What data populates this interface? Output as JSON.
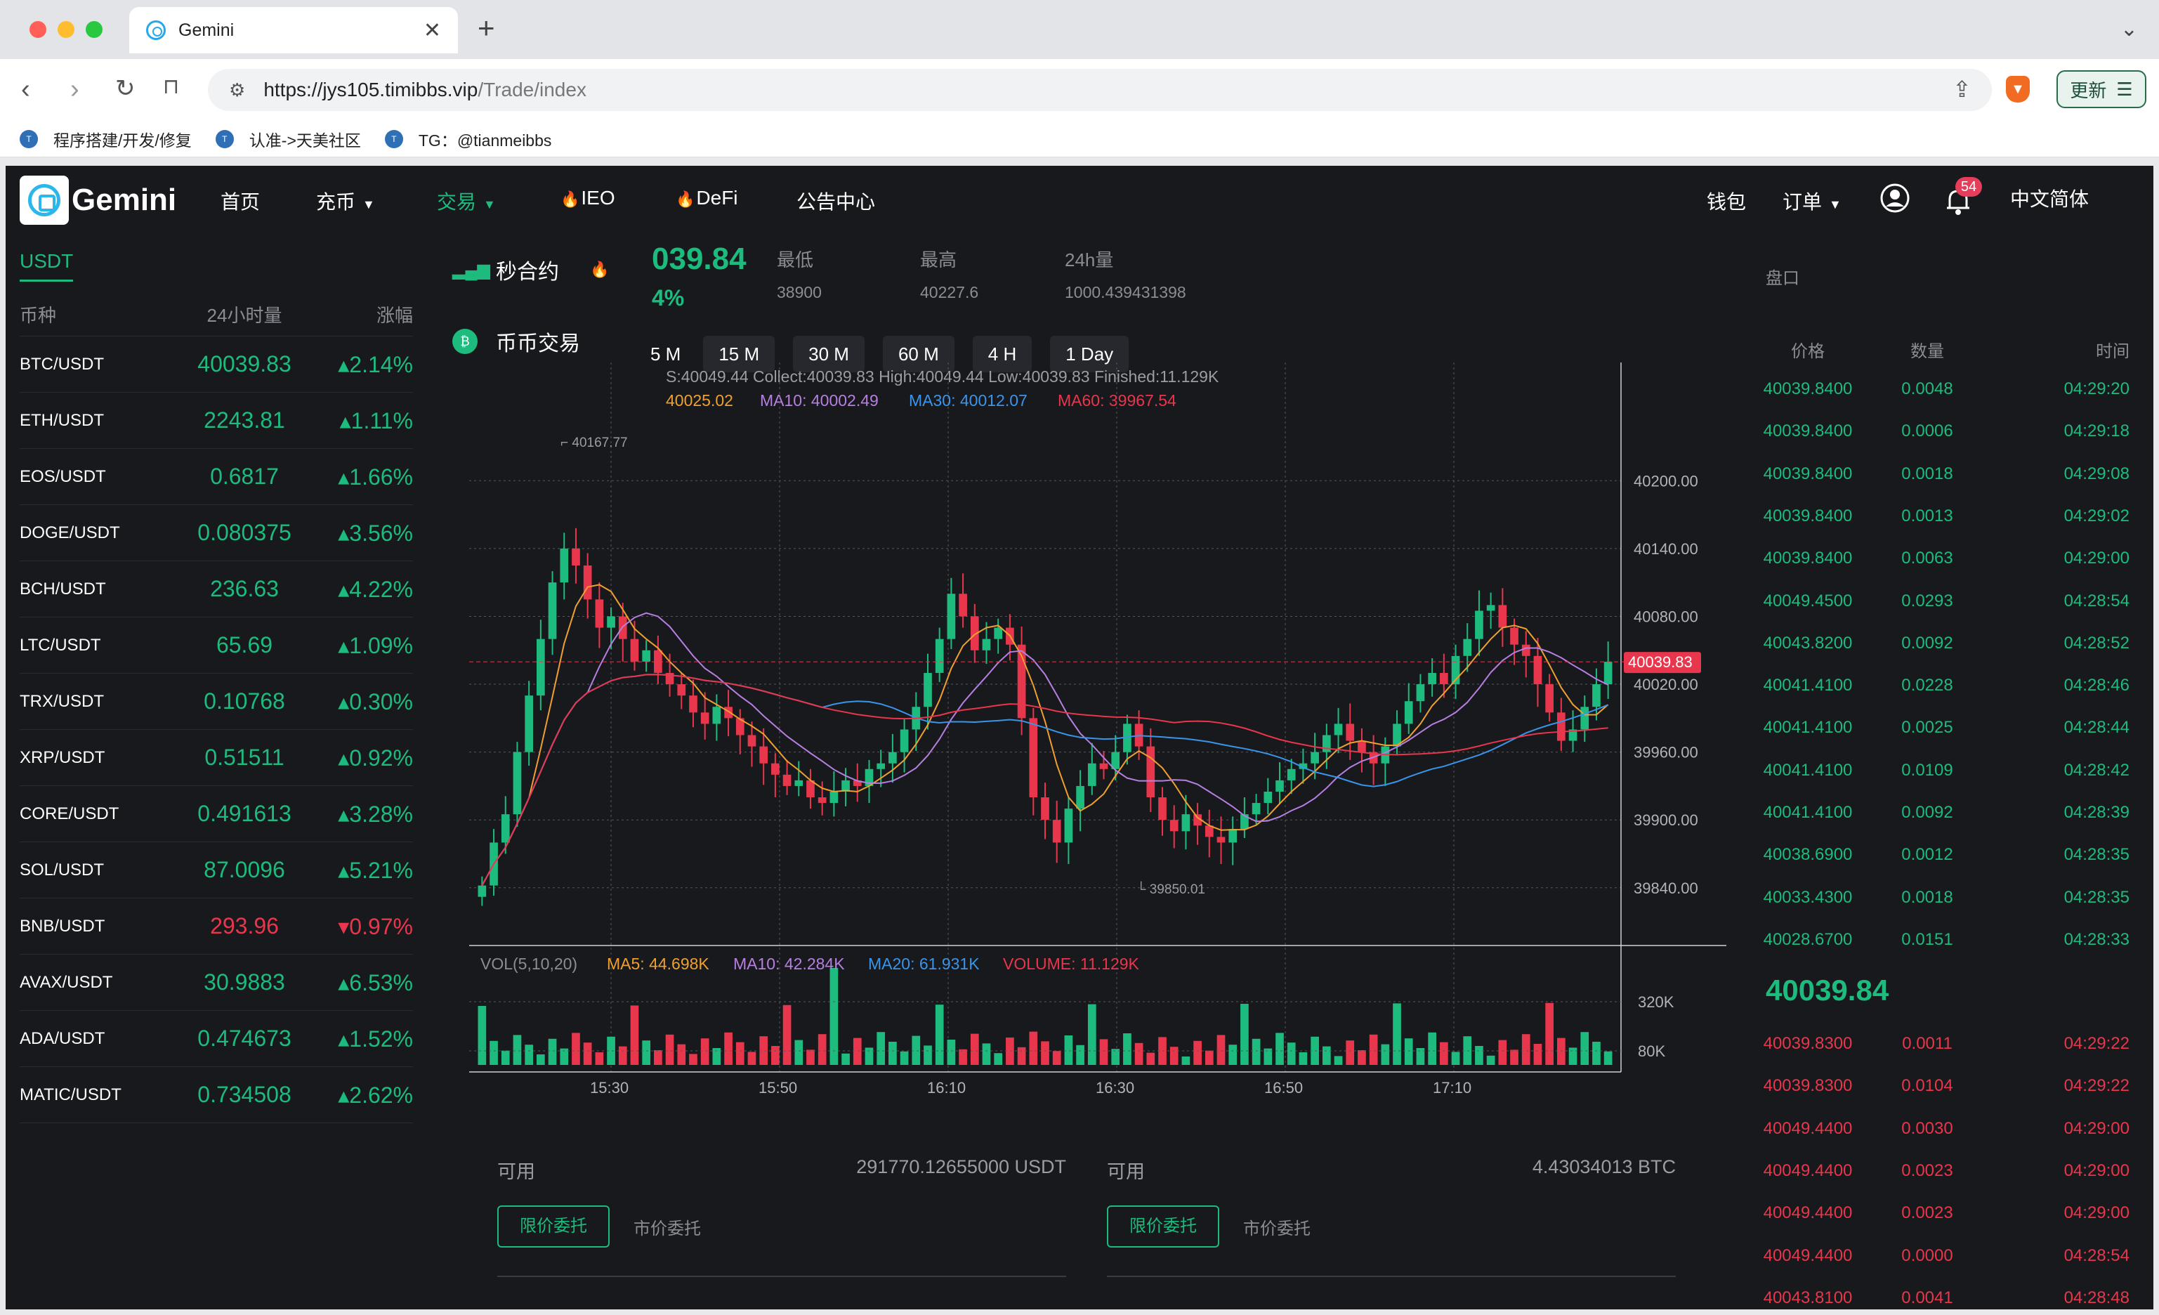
{
  "browser": {
    "tab_title": "Gemini",
    "url_host": "https://jys105.timibbs.vip",
    "url_path": "/Trade/index",
    "update_label": "更新",
    "bookmarks": [
      "程序搭建/开发/修复",
      "认准->天美社区",
      "TG：@tianmeibbs"
    ]
  },
  "nav": {
    "logo": "Gemini",
    "items": [
      {
        "label": "首页",
        "caret": false,
        "fire": false
      },
      {
        "label": "充币",
        "caret": true,
        "fire": false
      },
      {
        "label": "交易",
        "caret": true,
        "fire": false
      },
      {
        "label": "IEO",
        "caret": false,
        "fire": true
      },
      {
        "label": "DeFi",
        "caret": false,
        "fire": true
      },
      {
        "label": "公告中心",
        "caret": false,
        "fire": false
      }
    ],
    "right": {
      "wallet": "钱包",
      "orders": "订单",
      "badge": "54",
      "lang": "中文简体"
    }
  },
  "market": {
    "currency_tab": "USDT",
    "headers": [
      "币种",
      "24小时量",
      "涨幅"
    ],
    "rows": [
      {
        "pair": "BTC/USDT",
        "price": "40039.83",
        "change": "▴2.14%",
        "dir": "up"
      },
      {
        "pair": "ETH/USDT",
        "price": "2243.81",
        "change": "▴1.11%",
        "dir": "up"
      },
      {
        "pair": "EOS/USDT",
        "price": "0.6817",
        "change": "▴1.66%",
        "dir": "up"
      },
      {
        "pair": "DOGE/USDT",
        "price": "0.080375",
        "change": "▴3.56%",
        "dir": "up"
      },
      {
        "pair": "BCH/USDT",
        "price": "236.63",
        "change": "▴4.22%",
        "dir": "up"
      },
      {
        "pair": "LTC/USDT",
        "price": "65.69",
        "change": "▴1.09%",
        "dir": "up"
      },
      {
        "pair": "TRX/USDT",
        "price": "0.10768",
        "change": "▴0.30%",
        "dir": "up"
      },
      {
        "pair": "XRP/USDT",
        "price": "0.51511",
        "change": "▴0.92%",
        "dir": "up"
      },
      {
        "pair": "CORE/USDT",
        "price": "0.491613",
        "change": "▴3.28%",
        "dir": "up"
      },
      {
        "pair": "SOL/USDT",
        "price": "87.0096",
        "change": "▴5.21%",
        "dir": "up"
      },
      {
        "pair": "BNB/USDT",
        "price": "293.96",
        "change": "▾0.97%",
        "dir": "down"
      },
      {
        "pair": "AVAX/USDT",
        "price": "30.9883",
        "change": "▴6.53%",
        "dir": "up"
      },
      {
        "pair": "ADA/USDT",
        "price": "0.474673",
        "change": "▴1.52%",
        "dir": "up"
      },
      {
        "pair": "MATIC/USDT",
        "price": "0.734508",
        "change": "▴2.62%",
        "dir": "up"
      }
    ]
  },
  "trade_types": [
    "秒合约",
    "币币交易"
  ],
  "ticker": {
    "price": "039.84",
    "change": "4%",
    "stats": [
      {
        "label": "最低",
        "value": "38900"
      },
      {
        "label": "最高",
        "value": "40227.6"
      },
      {
        "label": "24h量",
        "value": "1000.439431398"
      }
    ]
  },
  "intervals": [
    "5 M",
    "15 M",
    "30 M",
    "60 M",
    "4 H",
    "1 Day"
  ],
  "chart_data": {
    "type": "candlestick",
    "info_line": "S:40049.44  Collect:40039.83  High:40049.44  Low:40039.83  Finished:11.129K",
    "ma_line": [
      {
        "text": "40025.02",
        "color": "#f0a030"
      },
      {
        "text": "MA10: 40002.49",
        "color": "#b67fe0"
      },
      {
        "text": "MA30: 40012.07",
        "color": "#3a95ea"
      },
      {
        "text": "MA60: 39967.54",
        "color": "#e8364c"
      }
    ],
    "price_axis": [
      "40200.00",
      "40140.00",
      "40080.00",
      "40020.00",
      "39960.00",
      "39900.00",
      "39840.00"
    ],
    "ylim": [
      39820,
      40230
    ],
    "current_price": "40039.83",
    "max_label": "40167.77",
    "min_label": "39850.01",
    "time_labels": [
      "15:30",
      "15:50",
      "16:10",
      "16:30",
      "16:50",
      "17:10"
    ],
    "vol_line": [
      {
        "text": "VOL(5,10,20)",
        "color": "#8a8d93"
      },
      {
        "text": "MA5: 44.698K",
        "color": "#f0a030"
      },
      {
        "text": "MA10: 42.284K",
        "color": "#b67fe0"
      },
      {
        "text": "MA20: 61.931K",
        "color": "#3a95ea"
      },
      {
        "text": "VOLUME: 11.129K",
        "color": "#e8364c"
      }
    ],
    "vol_axis": [
      "320K",
      "80K"
    ],
    "closes": [
      39842,
      39880,
      39905,
      39960,
      40010,
      40060,
      40110,
      40140,
      40125,
      40095,
      40070,
      40080,
      40060,
      40040,
      40050,
      40030,
      40020,
      40010,
      39995,
      39985,
      40000,
      39990,
      39975,
      39965,
      39950,
      39940,
      39930,
      39935,
      39920,
      39915,
      39925,
      39935,
      39930,
      39945,
      39950,
      39960,
      39980,
      40000,
      40030,
      40060,
      40100,
      40080,
      40050,
      40060,
      40070,
      40055,
      39990,
      39920,
      39900,
      39880,
      39910,
      39930,
      39950,
      39945,
      39960,
      39985,
      39965,
      39920,
      39900,
      39890,
      39905,
      39895,
      39885,
      39880,
      39892,
      39905,
      39915,
      39925,
      39935,
      39945,
      39950,
      39960,
      39975,
      39985,
      39970,
      39960,
      39950,
      39965,
      39985,
      40005,
      40020,
      40030,
      40020,
      40045,
      40060,
      40085,
      40090,
      40070,
      40055,
      40045,
      40020,
      39995,
      39970,
      39980,
      40000,
      40020,
      40039.83
    ],
    "colors": {
      "up": "#1dbb7e",
      "down": "#e8364c"
    }
  },
  "trade": {
    "buy": {
      "avail_label": "可用",
      "avail_value": "291770.12655000 USDT"
    },
    "sell": {
      "avail_label": "可用",
      "avail_value": "4.43034013 BTC"
    },
    "tab_limit": "限价委托",
    "tab_market": "市价委托"
  },
  "orderbook": {
    "title": "盘口",
    "headers": [
      "价格",
      "数量",
      "时间"
    ],
    "top": [
      {
        "price": "40039.8400",
        "qty": "0.0048",
        "time": "04:29:20"
      },
      {
        "price": "40039.8400",
        "qty": "0.0006",
        "time": "04:29:18"
      },
      {
        "price": "40039.8400",
        "qty": "0.0018",
        "time": "04:29:08"
      },
      {
        "price": "40039.8400",
        "qty": "0.0013",
        "time": "04:29:02"
      },
      {
        "price": "40039.8400",
        "qty": "0.0063",
        "time": "04:29:00"
      },
      {
        "price": "40049.4500",
        "qty": "0.0293",
        "time": "04:28:54"
      },
      {
        "price": "40043.8200",
        "qty": "0.0092",
        "time": "04:28:52"
      },
      {
        "price": "40041.4100",
        "qty": "0.0228",
        "time": "04:28:46"
      },
      {
        "price": "40041.4100",
        "qty": "0.0025",
        "time": "04:28:44"
      },
      {
        "price": "40041.4100",
        "qty": "0.0109",
        "time": "04:28:42"
      },
      {
        "price": "40041.4100",
        "qty": "0.0092",
        "time": "04:28:39"
      },
      {
        "price": "40038.6900",
        "qty": "0.0012",
        "time": "04:28:35"
      },
      {
        "price": "40033.4300",
        "qty": "0.0018",
        "time": "04:28:35"
      },
      {
        "price": "40028.6700",
        "qty": "0.0151",
        "time": "04:28:33"
      }
    ],
    "mid_price": "40039.84",
    "bottom": [
      {
        "price": "40039.8300",
        "qty": "0.0011",
        "time": "04:29:22"
      },
      {
        "price": "40039.8300",
        "qty": "0.0104",
        "time": "04:29:22"
      },
      {
        "price": "40049.4400",
        "qty": "0.0030",
        "time": "04:29:00"
      },
      {
        "price": "40049.4400",
        "qty": "0.0023",
        "time": "04:29:00"
      },
      {
        "price": "40049.4400",
        "qty": "0.0023",
        "time": "04:29:00"
      },
      {
        "price": "40049.4400",
        "qty": "0.0000",
        "time": "04:28:54"
      },
      {
        "price": "40043.8100",
        "qty": "0.0041",
        "time": "04:28:48"
      }
    ]
  }
}
